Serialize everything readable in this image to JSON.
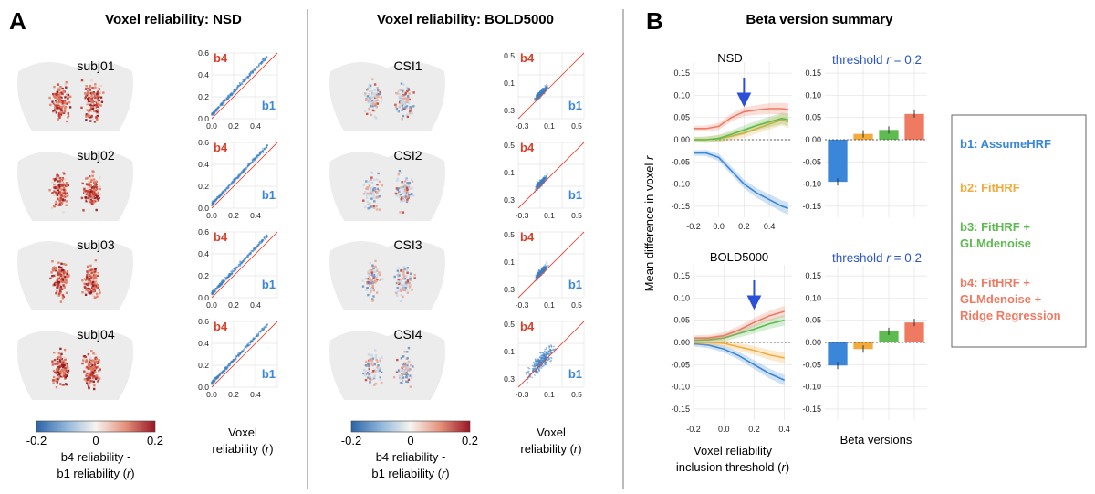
{
  "panel_labels": {
    "a": "A",
    "b": "B"
  },
  "colors": {
    "b1": "#3a86d8",
    "b2": "#f2ab3c",
    "b3": "#5dbb4f",
    "b4": "#ef7a62",
    "arrow": "#2b4fd8",
    "diag": "#e04a3a",
    "map_neg": "#2c64a8",
    "map_pos": "#9a1624"
  },
  "panel_a": {
    "nsd": {
      "title": "Voxel reliability: NSD",
      "subjects": [
        "subj01",
        "subj02",
        "subj03",
        "subj04"
      ],
      "scatter_ticks": [
        "0.0",
        "0.2",
        "0.4",
        "0.6"
      ],
      "b4_tag": "b4",
      "b1_tag": "b1",
      "colorbar_ticks": [
        "-0.2",
        "0",
        "0.2"
      ],
      "colorbar_label_1": "b4 reliability -",
      "colorbar_label_2": "b1 reliability (",
      "colorbar_label_r": "r",
      "colorbar_label_close": ")",
      "scatter_label_1": "Voxel",
      "scatter_label_2": "reliability (",
      "scatter_label_r": "r",
      "scatter_label_close": ")"
    },
    "bold5000": {
      "title": "Voxel reliability: BOLD5000",
      "subjects": [
        "CSI1",
        "CSI2",
        "CSI3",
        "CSI4"
      ],
      "scatter_yticks": [
        "0.5",
        "0.1",
        "0.3"
      ],
      "scatter_xticks": [
        "-0.3",
        "0.1",
        "0.5"
      ],
      "b4_tag": "b4",
      "b1_tag": "b1",
      "colorbar_ticks": [
        "-0.2",
        "0",
        "0.2"
      ],
      "colorbar_label_1": "b4 reliability -",
      "colorbar_label_2": "b1 reliability (",
      "colorbar_label_r": "r",
      "colorbar_label_close": ")",
      "scatter_label_1": "Voxel",
      "scatter_label_2": "reliability (",
      "scatter_label_r": "r",
      "scatter_label_close": ")"
    }
  },
  "panel_b": {
    "title": "Beta version summary",
    "ylabel_main": "Mean difference in voxel ",
    "ylabel_r": "r",
    "xlabel_1": "Voxel reliability",
    "xlabel_2": "inclusion threshold (",
    "xlabel_r": "r",
    "xlabel_close": ")",
    "bar_xlabel": "Beta versions",
    "threshold_prefix": "threshold ",
    "threshold_r": "r",
    "threshold_suffix": " = 0.2",
    "legend": [
      {
        "key": "b1",
        "label": "b1: AssumeHRF"
      },
      {
        "key": "b2",
        "label": "b2: FitHRF"
      },
      {
        "key": "b3",
        "label": "b3: FitHRF +",
        "label2": "GLMdenoise"
      },
      {
        "key": "b4",
        "label": "b4: FitHRF +",
        "label2": "GLMdenoise +",
        "label3": "Ridge Regression"
      }
    ]
  },
  "chart_data": [
    {
      "type": "line",
      "title": "NSD",
      "xlabel": "Voxel reliability inclusion threshold (r)",
      "ylabel": "Mean difference in voxel r",
      "x": [
        -0.2,
        -0.1,
        0.0,
        0.1,
        0.2,
        0.3,
        0.4,
        0.5,
        0.55
      ],
      "xticks": [
        "-0.2",
        "0.0",
        "0.2",
        "0.4"
      ],
      "yticks": [
        "0.15",
        "0.10",
        "0.05",
        "0.00",
        "-0.05",
        "-0.10",
        "-0.15"
      ],
      "xlim": [
        -0.2,
        0.58
      ],
      "ylim": [
        -0.175,
        0.175
      ],
      "arrow_at": 0.2,
      "series": [
        {
          "name": "b1",
          "values": [
            -0.03,
            -0.03,
            -0.04,
            -0.07,
            -0.1,
            -0.12,
            -0.135,
            -0.15,
            -0.155
          ]
        },
        {
          "name": "b2",
          "values": [
            0.0,
            0.0,
            0.002,
            0.008,
            0.015,
            0.025,
            0.035,
            0.045,
            0.04
          ]
        },
        {
          "name": "b3",
          "values": [
            0.0,
            0.0,
            0.003,
            0.012,
            0.022,
            0.032,
            0.04,
            0.048,
            0.045
          ]
        },
        {
          "name": "b4",
          "values": [
            0.025,
            0.025,
            0.03,
            0.05,
            0.063,
            0.067,
            0.07,
            0.07,
            0.068
          ]
        }
      ]
    },
    {
      "type": "bar",
      "title": "threshold r = 0.2 (NSD)",
      "categories": [
        "b1",
        "b2",
        "b3",
        "b4"
      ],
      "values": [
        -0.095,
        0.013,
        0.022,
        0.058
      ],
      "yticks": [
        "0.15",
        "0.10",
        "0.05",
        "0.00",
        "-0.05",
        "-0.10",
        "-0.15"
      ],
      "ylim": [
        -0.175,
        0.175
      ]
    },
    {
      "type": "line",
      "title": "BOLD5000",
      "xlabel": "Voxel reliability inclusion threshold (r)",
      "ylabel": "Mean difference in voxel r",
      "x": [
        -0.2,
        -0.1,
        0.0,
        0.1,
        0.2,
        0.3,
        0.4
      ],
      "xticks": [
        "-0.2",
        "0.0",
        "0.2",
        "0.4"
      ],
      "yticks": [
        "0.15",
        "0.10",
        "0.05",
        "0.00",
        "-0.05",
        "-0.10",
        "-0.15"
      ],
      "xlim": [
        -0.2,
        0.45
      ],
      "ylim": [
        -0.175,
        0.175
      ],
      "arrow_at": 0.2,
      "series": [
        {
          "name": "b1",
          "values": [
            -0.003,
            -0.006,
            -0.015,
            -0.03,
            -0.05,
            -0.07,
            -0.085
          ]
        },
        {
          "name": "b2",
          "values": [
            0.0,
            0.0,
            -0.002,
            -0.01,
            -0.018,
            -0.028,
            -0.035
          ]
        },
        {
          "name": "b3",
          "values": [
            0.005,
            0.006,
            0.01,
            0.02,
            0.03,
            0.042,
            0.05
          ]
        },
        {
          "name": "b4",
          "values": [
            0.01,
            0.01,
            0.015,
            0.028,
            0.045,
            0.06,
            0.07
          ]
        }
      ]
    },
    {
      "type": "bar",
      "title": "threshold r = 0.2 (BOLD5000)",
      "categories": [
        "b1",
        "b2",
        "b3",
        "b4"
      ],
      "values": [
        -0.052,
        -0.015,
        0.025,
        0.045
      ],
      "yticks": [
        "0.15",
        "0.10",
        "0.05",
        "0.00",
        "-0.05",
        "-0.10",
        "-0.15"
      ],
      "ylim": [
        -0.175,
        0.175
      ]
    }
  ]
}
